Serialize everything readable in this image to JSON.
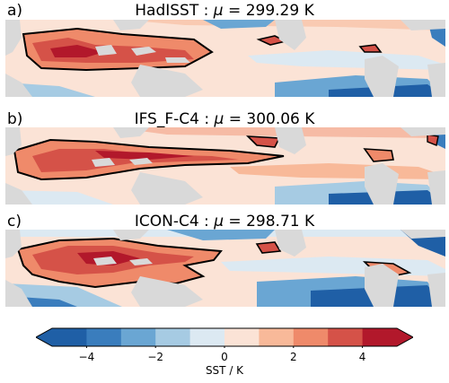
{
  "panels": [
    {
      "label": "a)",
      "name": "HadISST",
      "mean": "299.29"
    },
    {
      "label": "b)",
      "name": "IFS_F-C4",
      "mean": "300.06"
    },
    {
      "label": "c)",
      "name": "ICON-C4",
      "mean": "298.71"
    }
  ],
  "title_sep": " : ",
  "mu_symbol": "μ",
  "title_eq": " = ",
  "unit": " K",
  "colorbar": {
    "ticks": [
      "−4",
      "−2",
      "0",
      "2",
      "4"
    ],
    "label": "SST / K",
    "range": [
      -5,
      5
    ],
    "levels": [
      -5,
      -4,
      -3,
      -2,
      -1,
      0,
      1,
      2,
      3,
      4,
      5
    ],
    "colors": [
      "#1f5fa6",
      "#3a7dbd",
      "#6aa6d3",
      "#a6cbe3",
      "#dce9f2",
      "#fbe3d6",
      "#f8b999",
      "#ef8a6a",
      "#d55248",
      "#b2182b"
    ],
    "land_color": "#d9d9d9",
    "contour_color": "#000000"
  }
}
